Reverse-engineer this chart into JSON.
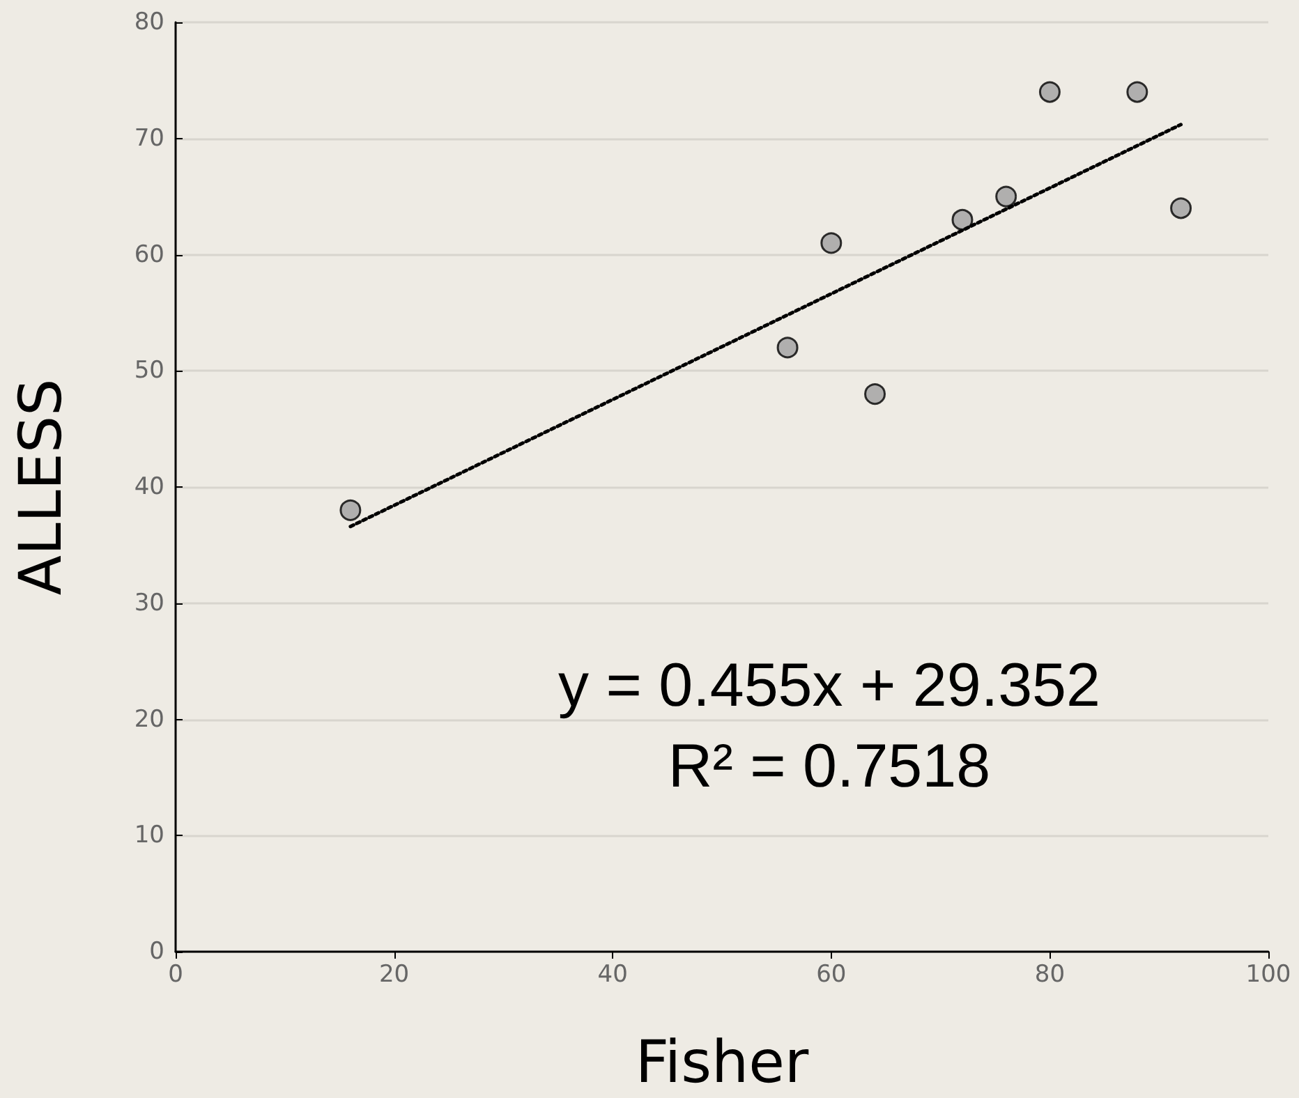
{
  "chart_data": {
    "type": "scatter",
    "xlabel": "Fisher",
    "ylabel": "ALLESS",
    "xlim": [
      0,
      100
    ],
    "xticks": [
      0,
      20,
      40,
      60,
      80,
      100
    ],
    "ylim": [
      0,
      80
    ],
    "yticks": [
      0,
      10,
      20,
      30,
      40,
      50,
      60,
      70,
      80
    ],
    "grid": "y",
    "marker": "circle",
    "annotations": [
      "y = 0.455x + 29.352",
      "R² = 0.7518"
    ],
    "series": [
      {
        "color": "#a0a0a0",
        "x": [
          16,
          56,
          60,
          64,
          72,
          76,
          80,
          88,
          92
        ],
        "values": [
          38,
          52,
          61,
          48,
          63,
          65,
          74,
          74,
          64
        ]
      },
      {
        "type": "line",
        "color": "#000000",
        "marker": "none",
        "line_style": "dotted",
        "x": [
          16,
          92
        ],
        "values": [
          36.6,
          71.2
        ]
      }
    ]
  }
}
